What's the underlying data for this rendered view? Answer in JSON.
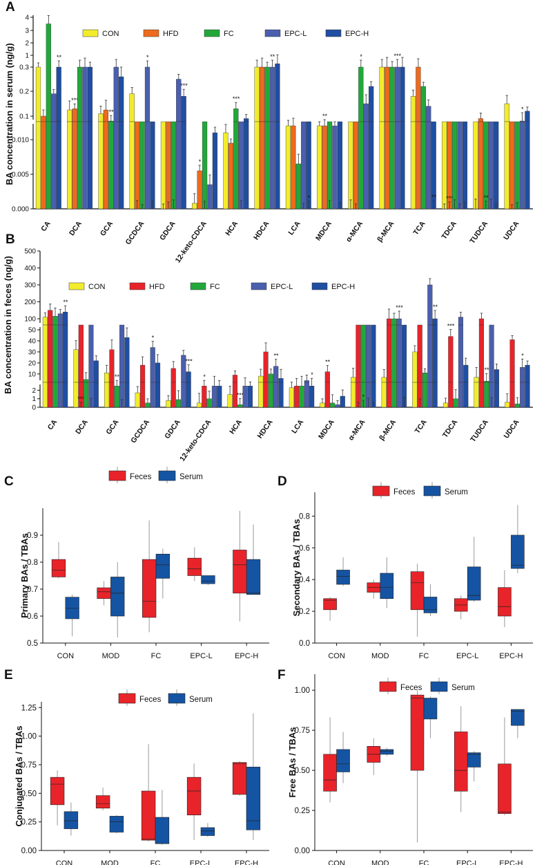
{
  "groups": [
    "CON",
    "HFD",
    "FC",
    "EPC-L",
    "EPC-H"
  ],
  "colors": {
    "CON": "#f2ec2c",
    "HFD": "#ee6a1c",
    "FC": "#22a83a",
    "EPC-L": "#4a5fae",
    "EPC-H": "#1f4ea2"
  },
  "colorsB": {
    "CON": "#f2ec2c",
    "HFD": "#e8242a",
    "FC": "#22a83a",
    "EPC-L": "#4a5fae",
    "EPC-H": "#1f4ea2"
  },
  "box_colors": {
    "Feces": "#e8242a",
    "Serum": "#1554a3"
  },
  "chart_data": [
    {
      "panel": "A",
      "type": "bar",
      "ylabel": "BA concentration in serum (ng/g)",
      "categories": [
        "CA",
        "DCA",
        "GCA",
        "GCDCA",
        "GDCA",
        "12-keto-CDCA",
        "HCA",
        "HDCA",
        "LCA",
        "MDCA",
        "α-MCA",
        "β-MCA",
        "TCA",
        "TDCA",
        "TUDCA",
        "UDCA"
      ],
      "upper_ticks": [
        "4",
        "3",
        "2",
        "1",
        "0.3",
        "0.2",
        "0.1"
      ],
      "lower_ticks": [
        "0.010",
        "0.005",
        "0.000"
      ],
      "series": [
        {
          "name": "CON",
          "values": [
            0.3,
            0.125,
            0.11,
            0.19,
            0.055,
            0.0008,
            0.011,
            0.3,
            0.012,
            0.012,
            0.05,
            0.3,
            0.18,
            0.06,
            0.05,
            0.15
          ]
        },
        {
          "name": "HFD",
          "values": [
            0.1,
            0.13,
            0.125,
            0.06,
            0.045,
            0.0055,
            0.0095,
            0.3,
            0.012,
            0.012,
            0.05,
            0.3,
            0.3,
            0.07,
            0.09,
            0.07
          ]
        },
        {
          "name": "FC",
          "values": [
            3.5,
            0.3,
            0.08,
            0.04,
            0.045,
            0.05,
            0.13,
            0.3,
            0.0065,
            0.06,
            0.3,
            0.3,
            0.22,
            0.045,
            0.04,
            0.05
          ]
        },
        {
          "name": "EPC-L",
          "values": [
            0.19,
            0.3,
            0.3,
            0.3,
            0.25,
            0.0035,
            0.04,
            0.3,
            0.014,
            0.012,
            0.15,
            0.3,
            0.14,
            0.06,
            0.04,
            0.08
          ]
        },
        {
          "name": "EPC-H",
          "values": [
            0.3,
            0.3,
            0.26,
            0.055,
            0.18,
            0.011,
            0.09,
            0.5,
            0.014,
            0.013,
            0.22,
            0.3,
            0.075,
            0.055,
            0.055,
            0.12
          ]
        }
      ],
      "stars": [
        "*",
        "**",
        "***"
      ]
    },
    {
      "panel": "B",
      "type": "bar",
      "ylabel": "BA concentration in feces (ng/g)",
      "categories": [
        "CA",
        "DCA",
        "GCA",
        "GCDCA",
        "GDCA",
        "12-keto-CDCA",
        "HCA",
        "HDCA",
        "LCA",
        "MDCA",
        "α-MCA",
        "β-MCA",
        "TCA",
        "TDCA",
        "TUDCA",
        "UDCA"
      ],
      "upper_ticks": [
        "500",
        "400",
        "300",
        "200",
        "100"
      ],
      "mid_ticks": [
        "50",
        "40",
        "30",
        "20",
        "10"
      ],
      "lower_ticks": [
        "2",
        "1",
        "0"
      ],
      "series": [
        {
          "name": "CON",
          "values": [
            110,
            32,
            11,
            1.7,
            0.8,
            0.5,
            1.5,
            8,
            2.3,
            0.5,
            7,
            7,
            30,
            0.5,
            7,
            0.6
          ]
        },
        {
          "name": "HFD",
          "values": [
            150,
            60,
            32,
            18,
            15,
            2.5,
            9,
            30,
            2.5,
            12,
            80,
            100,
            60,
            44,
            100,
            41
          ]
        },
        {
          "name": "FC",
          "values": [
            115,
            5,
            2.5,
            0.5,
            0.9,
            1,
            0.3,
            10,
            2.5,
            0.5,
            80,
            100,
            11,
            1,
            3.5,
            0.4
          ]
        },
        {
          "name": "EPC-L",
          "values": [
            130,
            60,
            55,
            34,
            27,
            2.5,
            2.5,
            17,
            4,
            0.3,
            65,
            100,
            300,
            110,
            80,
            16
          ]
        },
        {
          "name": "EPC-H",
          "values": [
            140,
            22,
            43,
            20,
            12,
            2.5,
            2.5,
            6,
            2.5,
            1.3,
            70,
            80,
            100,
            18,
            14,
            18
          ]
        }
      ]
    },
    {
      "panel": "C",
      "type": "box",
      "ylabel": "Primary BAs / TBAs",
      "categories": [
        "CON",
        "MOD",
        "FC",
        "EPC-L",
        "EPC-H"
      ],
      "yticks": [
        "0.5",
        "0.6",
        "0.7",
        "0.8",
        "0.9"
      ],
      "ylim": [
        0.5,
        1.0
      ],
      "legend": [
        "Feces",
        "Serum"
      ],
      "feces": [
        [
          0.74,
          0.745,
          0.77,
          0.81,
          0.875
        ],
        [
          0.64,
          0.665,
          0.69,
          0.705,
          0.73
        ],
        [
          0.54,
          0.595,
          0.655,
          0.81,
          0.955
        ],
        [
          0.73,
          0.75,
          0.775,
          0.815,
          0.855
        ],
        [
          0.58,
          0.685,
          0.79,
          0.845,
          0.99
        ]
      ],
      "serum": [
        [
          0.525,
          0.59,
          0.63,
          0.67,
          0.68
        ],
        [
          0.52,
          0.6,
          0.685,
          0.745,
          0.8
        ],
        [
          0.665,
          0.74,
          0.79,
          0.83,
          0.85
        ],
        [
          0.715,
          0.72,
          0.73,
          0.75,
          0.75
        ],
        [
          0.68,
          0.68,
          0.685,
          0.81,
          0.94
        ]
      ]
    },
    {
      "panel": "D",
      "type": "box",
      "ylabel": "Secondary BAs / TBAs",
      "categories": [
        "CON",
        "MOD",
        "FC",
        "EPC-L",
        "EPC-H"
      ],
      "yticks": [
        "0.0",
        "0.2",
        "0.4",
        "0.6",
        "0.8"
      ],
      "ylim": [
        0.0,
        0.95
      ],
      "legend": [
        "Feces",
        "Serum"
      ],
      "feces": [
        [
          0.14,
          0.21,
          0.27,
          0.28,
          0.29
        ],
        [
          0.28,
          0.32,
          0.35,
          0.38,
          0.4
        ],
        [
          0.04,
          0.21,
          0.38,
          0.45,
          0.5
        ],
        [
          0.15,
          0.2,
          0.24,
          0.28,
          0.3
        ],
        [
          0.1,
          0.17,
          0.23,
          0.35,
          0.46
        ]
      ],
      "serum": [
        [
          0.36,
          0.37,
          0.42,
          0.46,
          0.54
        ],
        [
          0.22,
          0.28,
          0.35,
          0.44,
          0.54
        ],
        [
          0.17,
          0.19,
          0.21,
          0.29,
          0.37
        ],
        [
          0.26,
          0.27,
          0.3,
          0.48,
          0.67
        ],
        [
          0.44,
          0.47,
          0.49,
          0.68,
          0.87
        ]
      ]
    },
    {
      "panel": "E",
      "type": "box",
      "ylabel": "Conjugated BAs / TBAs",
      "categories": [
        "CON",
        "MOD",
        "FC",
        "EPC-L",
        "EPC-H"
      ],
      "yticks": [
        "0.00",
        "0.25",
        "0.50",
        "0.75",
        "1.00",
        "1.25"
      ],
      "ylim": [
        0.0,
        1.3
      ],
      "legend": [
        "Feces",
        "Serum"
      ],
      "feces": [
        [
          0.22,
          0.4,
          0.58,
          0.64,
          0.7
        ],
        [
          0.35,
          0.37,
          0.41,
          0.48,
          0.55
        ],
        [
          0.08,
          0.09,
          0.1,
          0.52,
          0.93
        ],
        [
          0.09,
          0.31,
          0.52,
          0.64,
          0.76
        ],
        [
          0.48,
          0.49,
          0.76,
          0.77,
          0.78
        ]
      ],
      "serum": [
        [
          0.13,
          0.19,
          0.26,
          0.34,
          0.42
        ],
        [
          0.15,
          0.16,
          0.25,
          0.3,
          0.31
        ],
        [
          0.05,
          0.06,
          0.06,
          0.29,
          0.53
        ],
        [
          0.12,
          0.13,
          0.17,
          0.2,
          0.24
        ],
        [
          0.09,
          0.18,
          0.26,
          0.73,
          1.2
        ]
      ]
    },
    {
      "panel": "F",
      "type": "box",
      "ylabel": "Free BAs / TBAs",
      "categories": [
        "CON",
        "MOD",
        "FC",
        "EPC-L",
        "EPC-H"
      ],
      "yticks": [
        "0.00",
        "0.25",
        "0.50",
        "0.75",
        "1.00"
      ],
      "ylim": [
        0.0,
        1.1
      ],
      "legend": [
        "Feces",
        "Serum"
      ],
      "feces": [
        [
          0.3,
          0.37,
          0.44,
          0.6,
          0.83
        ],
        [
          0.47,
          0.55,
          0.6,
          0.65,
          0.7
        ],
        [
          0.05,
          0.5,
          0.95,
          0.97,
          1.0
        ],
        [
          0.24,
          0.37,
          0.5,
          0.74,
          0.9
        ],
        [
          0.22,
          0.23,
          0.24,
          0.54,
          0.83
        ]
      ],
      "serum": [
        [
          0.42,
          0.49,
          0.54,
          0.63,
          0.74
        ],
        [
          0.59,
          0.6,
          0.62,
          0.63,
          0.64
        ],
        [
          0.7,
          0.82,
          0.95,
          0.95,
          0.96
        ],
        [
          0.43,
          0.52,
          0.6,
          0.61,
          0.62
        ],
        [
          0.7,
          0.78,
          0.87,
          0.88,
          0.88
        ]
      ]
    }
  ],
  "panel_letters": [
    "A",
    "B",
    "C",
    "D",
    "E",
    "F"
  ]
}
